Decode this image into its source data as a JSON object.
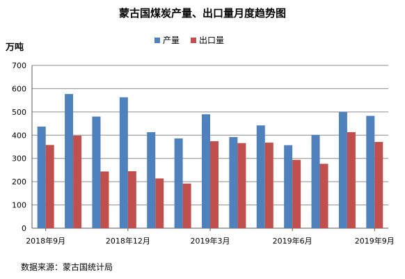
{
  "chart_data": {
    "type": "bar",
    "title": "蒙古国煤炭产量、出口量月度趋势图",
    "ylabel": "万吨",
    "ylim": [
      0,
      700
    ],
    "yticks": [
      0,
      100,
      200,
      300,
      400,
      500,
      600,
      700
    ],
    "x": [
      "2018-09",
      "2018-10",
      "2018-11",
      "2018-12",
      "2019-01",
      "2019-02",
      "2019-03",
      "2019-04",
      "2019-05",
      "2019-06",
      "2019-07",
      "2019-08",
      "2019-09"
    ],
    "xtick_labels": [
      "2018年9月",
      "2018年12月",
      "2019年3月",
      "2019年6月",
      "2019年9月"
    ],
    "series": [
      {
        "name": "产量",
        "color": "#4f81bd",
        "values": [
          437,
          577,
          480,
          563,
          413,
          386,
          490,
          392,
          442,
          357,
          401,
          500,
          483
        ]
      },
      {
        "name": "出口量",
        "color": "#c0504d",
        "values": [
          358,
          398,
          244,
          245,
          214,
          192,
          374,
          366,
          368,
          294,
          277,
          413,
          371
        ]
      }
    ],
    "grid": true,
    "legend_position": "top"
  },
  "footer": {
    "source": "数据来源：蒙古国统计局"
  }
}
